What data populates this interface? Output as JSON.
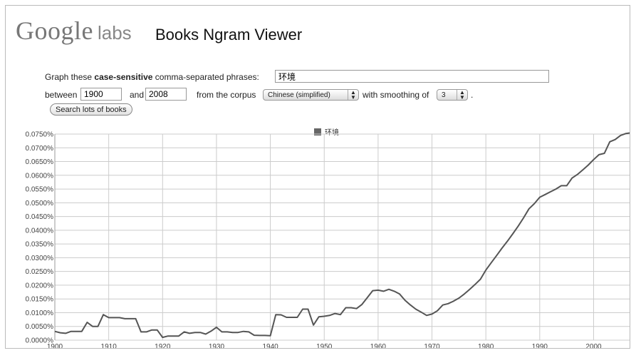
{
  "header": {
    "logo_google": "Google",
    "logo_labs": "labs",
    "title": "Books Ngram Viewer"
  },
  "query": {
    "graph_prefix": "Graph these",
    "graph_bold": "case-sensitive",
    "graph_suffix": "comma-separated phrases:",
    "phrases": "环境",
    "between_label": "between",
    "year_start": "1900",
    "and_label": "and",
    "year_end": "2008",
    "corpus_label": "from the corpus",
    "corpus_value": "Chinese (simplified)",
    "smoothing_label": "with smoothing of",
    "smoothing_value": "3",
    "period": ".",
    "search_button": "Search lots of books"
  },
  "colors": {
    "line": "#555555",
    "grid": "#cccccc",
    "legend_swatch": "#666666"
  },
  "chart_data": {
    "type": "line",
    "title": "",
    "xlabel": "",
    "ylabel": "",
    "xlim": [
      1900,
      2008
    ],
    "ylim": [
      0,
      0.075
    ],
    "grid": true,
    "legend_position": "top-center",
    "x_ticks": [
      "1900",
      "1910",
      "1920",
      "1930",
      "1940",
      "1950",
      "1960",
      "1970",
      "1980",
      "1990",
      "2000"
    ],
    "y_ticks": [
      "0.0000%",
      "0.0050%",
      "0.0100%",
      "0.0150%",
      "0.0200%",
      "0.0250%",
      "0.0300%",
      "0.0350%",
      "0.0400%",
      "0.0450%",
      "0.0500%",
      "0.0550%",
      "0.0600%",
      "0.0650%",
      "0.0700%",
      "0.0750%"
    ],
    "y_tick_values": [
      0,
      0.005,
      0.01,
      0.015,
      0.02,
      0.025,
      0.03,
      0.035,
      0.04,
      0.045,
      0.05,
      0.055,
      0.06,
      0.065,
      0.07,
      0.075
    ],
    "x_tick_values": [
      1900,
      1910,
      1920,
      1930,
      1940,
      1950,
      1960,
      1970,
      1980,
      1990,
      2000
    ],
    "series": [
      {
        "name": "环境",
        "x": [
          1900,
          1901,
          1902,
          1903,
          1904,
          1905,
          1906,
          1907,
          1908,
          1909,
          1910,
          1911,
          1912,
          1913,
          1914,
          1915,
          1916,
          1917,
          1918,
          1919,
          1920,
          1921,
          1922,
          1923,
          1924,
          1925,
          1926,
          1927,
          1928,
          1929,
          1930,
          1931,
          1932,
          1933,
          1934,
          1935,
          1936,
          1937,
          1938,
          1939,
          1940,
          1941,
          1942,
          1943,
          1944,
          1945,
          1946,
          1947,
          1948,
          1949,
          1950,
          1951,
          1952,
          1953,
          1954,
          1955,
          1956,
          1957,
          1958,
          1959,
          1960,
          1961,
          1962,
          1963,
          1964,
          1965,
          1966,
          1967,
          1968,
          1969,
          1970,
          1971,
          1972,
          1973,
          1974,
          1975,
          1976,
          1977,
          1978,
          1979,
          1980,
          1981,
          1982,
          1983,
          1984,
          1985,
          1986,
          1987,
          1988,
          1989,
          1990,
          1991,
          1992,
          1993,
          1994,
          1995,
          1996,
          1997,
          1998,
          1999,
          2000,
          2001,
          2002,
          2003,
          2004,
          2005,
          2006,
          2007,
          2008
        ],
        "values": [
          0.0032,
          0.0027,
          0.0025,
          0.0032,
          0.0032,
          0.0032,
          0.0065,
          0.005,
          0.005,
          0.0093,
          0.0082,
          0.0082,
          0.0082,
          0.0078,
          0.0078,
          0.0078,
          0.003,
          0.003,
          0.0037,
          0.0037,
          0.001,
          0.0015,
          0.0015,
          0.0015,
          0.003,
          0.0025,
          0.0028,
          0.0028,
          0.0022,
          0.0033,
          0.0047,
          0.003,
          0.003,
          0.0028,
          0.0028,
          0.0032,
          0.003,
          0.0018,
          0.0017,
          0.0017,
          0.0016,
          0.0093,
          0.0092,
          0.0083,
          0.0083,
          0.0083,
          0.0113,
          0.0113,
          0.0055,
          0.0085,
          0.0087,
          0.009,
          0.0097,
          0.0093,
          0.0118,
          0.0118,
          0.0115,
          0.013,
          0.0155,
          0.018,
          0.0182,
          0.0178,
          0.0185,
          0.0178,
          0.0168,
          0.0145,
          0.0128,
          0.0113,
          0.0102,
          0.009,
          0.0095,
          0.0107,
          0.0128,
          0.0133,
          0.0142,
          0.0153,
          0.0168,
          0.0185,
          0.0203,
          0.0222,
          0.0255,
          0.0282,
          0.0308,
          0.0335,
          0.036,
          0.0387,
          0.0415,
          0.0445,
          0.0478,
          0.0497,
          0.052,
          0.053,
          0.054,
          0.055,
          0.0562,
          0.0562,
          0.059,
          0.0603,
          0.062,
          0.0637,
          0.0657,
          0.0675,
          0.068,
          0.0722,
          0.073,
          0.0745,
          0.0752,
          0.0755,
          0.0757
        ]
      }
    ]
  }
}
